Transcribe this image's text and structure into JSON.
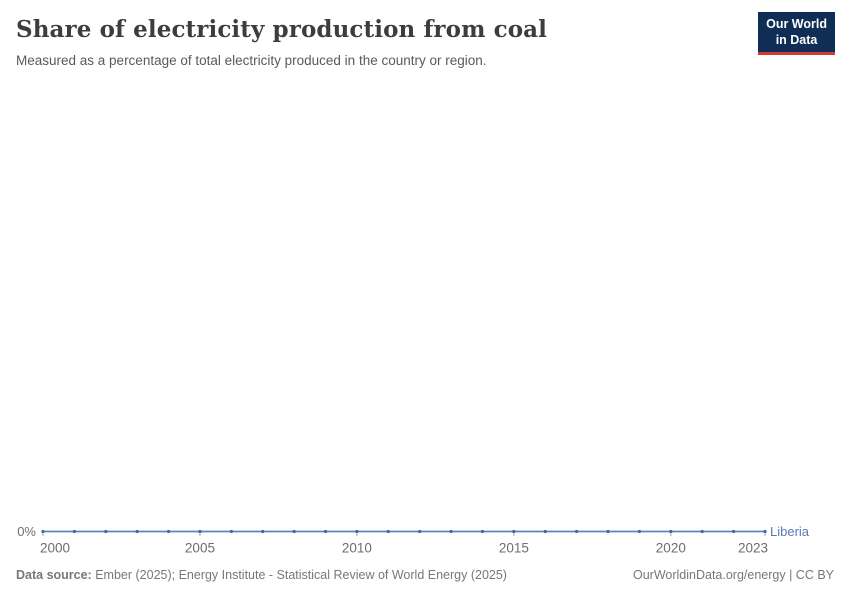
{
  "header": {
    "title": "Share of electricity production from coal",
    "subtitle": "Measured as a percentage of total electricity produced in the country or region.",
    "logo": {
      "line1": "Our World",
      "line2": "in Data",
      "bg_color": "#0f2d55",
      "underline_color": "#cf3b32"
    }
  },
  "chart_data": {
    "type": "line",
    "title": "Share of electricity production from coal",
    "subtitle": "Measured as a percentage of total electricity produced in the country or region.",
    "x": [
      2000,
      2001,
      2002,
      2003,
      2004,
      2005,
      2006,
      2007,
      2008,
      2009,
      2010,
      2011,
      2012,
      2013,
      2014,
      2015,
      2016,
      2017,
      2018,
      2019,
      2020,
      2021,
      2022,
      2023
    ],
    "series": [
      {
        "name": "Liberia",
        "values": [
          0,
          0,
          0,
          0,
          0,
          0,
          0,
          0,
          0,
          0,
          0,
          0,
          0,
          0,
          0,
          0,
          0,
          0,
          0,
          0,
          0,
          0,
          0,
          0
        ],
        "line_color": "#5b84c4",
        "marker_color": "#3f66aa",
        "label_color": "#577ab8"
      }
    ],
    "xticks": [
      2000,
      2005,
      2010,
      2015,
      2020,
      2023
    ],
    "yticks": [
      {
        "value": 0,
        "label": "0%"
      }
    ],
    "ylim": [
      0,
      100
    ],
    "grid": false,
    "legend_position": "line-end",
    "axis_text_color": "#6e6e6e",
    "tick_mark_color": "#9aa4b0"
  },
  "footer": {
    "data_source_label": "Data source:",
    "data_source_value": " Ember (2025); Energy Institute - Statistical Review of World Energy (2025)",
    "citation": "OurWorldinData.org/energy | CC BY"
  }
}
